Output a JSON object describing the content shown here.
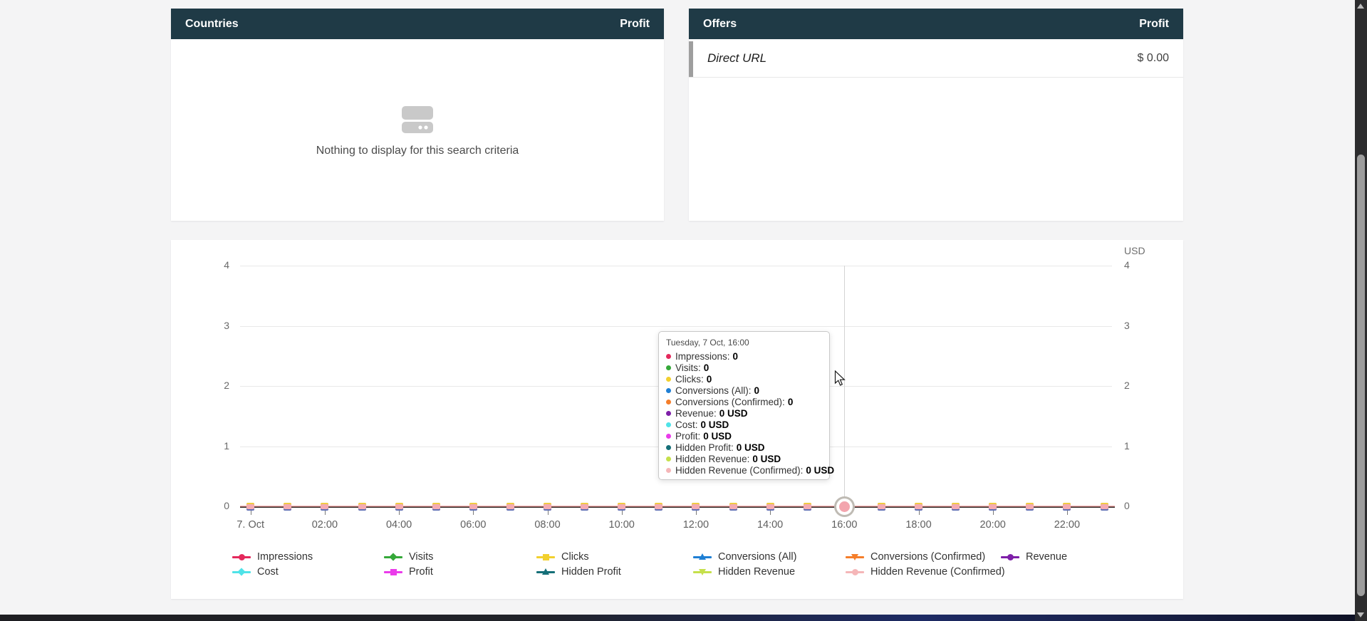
{
  "panels": {
    "countries": {
      "title": "Countries",
      "metric": "Profit",
      "empty_text": "Nothing to display for this search criteria"
    },
    "offers": {
      "title": "Offers",
      "metric": "Profit",
      "rows": [
        {
          "name": "Direct URL",
          "profit": "$ 0.00"
        }
      ]
    }
  },
  "chart": {
    "unit_label": "USD",
    "y_ticks": [
      "4",
      "3",
      "2",
      "1",
      "0"
    ],
    "x_ticks": [
      "7. Oct",
      "02:00",
      "04:00",
      "06:00",
      "08:00",
      "10:00",
      "12:00",
      "14:00",
      "16:00",
      "18:00",
      "20:00",
      "22:00"
    ],
    "highlight_hour": 16,
    "tooltip": {
      "title": "Tuesday, 7 Oct, 16:00",
      "items": [
        {
          "label": "Impressions",
          "value": "0",
          "color": "#e4295c"
        },
        {
          "label": "Visits",
          "value": "0",
          "color": "#35a839"
        },
        {
          "label": "Clicks",
          "value": "0",
          "color": "#f2d02e"
        },
        {
          "label": "Conversions (All)",
          "value": "0",
          "color": "#1f7fd4"
        },
        {
          "label": "Conversions (Confirmed)",
          "value": "0",
          "color": "#f57e2a"
        },
        {
          "label": "Revenue",
          "value": "0 USD",
          "color": "#7e1fa8"
        },
        {
          "label": "Cost",
          "value": "0 USD",
          "color": "#4fe3e8"
        },
        {
          "label": "Profit",
          "value": "0 USD",
          "color": "#ea3bea"
        },
        {
          "label": "Hidden Profit",
          "value": "0 USD",
          "color": "#156f78"
        },
        {
          "label": "Hidden Revenue",
          "value": "0 USD",
          "color": "#c5e04b"
        },
        {
          "label": "Hidden Revenue (Confirmed)",
          "value": "0 USD",
          "color": "#f5b6b8"
        }
      ]
    },
    "legend": [
      {
        "label": "Impressions",
        "color": "#e4295c",
        "shape": "circle"
      },
      {
        "label": "Visits",
        "color": "#35a839",
        "shape": "diamond"
      },
      {
        "label": "Clicks",
        "color": "#f2d02e",
        "shape": "square"
      },
      {
        "label": "Conversions (All)",
        "color": "#1f7fd4",
        "shape": "triangle-up"
      },
      {
        "label": "Conversions (Confirmed)",
        "color": "#f57e2a",
        "shape": "triangle-down"
      },
      {
        "label": "Revenue",
        "color": "#7e1fa8",
        "shape": "circle"
      },
      {
        "label": "Cost",
        "color": "#4fe3e8",
        "shape": "diamond"
      },
      {
        "label": "Profit",
        "color": "#ea3bea",
        "shape": "square"
      },
      {
        "label": "Hidden Profit",
        "color": "#156f78",
        "shape": "triangle-up"
      },
      {
        "label": "Hidden Revenue",
        "color": "#c5e04b",
        "shape": "triangle-down"
      },
      {
        "label": "Hidden Revenue (Confirmed)",
        "color": "#f5b6b8",
        "shape": "circle"
      }
    ],
    "chart_data": {
      "type": "line",
      "date": "Tuesday, 7 Oct",
      "x": [
        "00:00",
        "01:00",
        "02:00",
        "03:00",
        "04:00",
        "05:00",
        "06:00",
        "07:00",
        "08:00",
        "09:00",
        "10:00",
        "11:00",
        "12:00",
        "13:00",
        "14:00",
        "15:00",
        "16:00",
        "17:00",
        "18:00",
        "19:00",
        "20:00",
        "21:00",
        "22:00",
        "23:00"
      ],
      "series": [
        {
          "name": "Impressions",
          "values": [
            0,
            0,
            0,
            0,
            0,
            0,
            0,
            0,
            0,
            0,
            0,
            0,
            0,
            0,
            0,
            0,
            0,
            0,
            0,
            0,
            0,
            0,
            0,
            0
          ]
        },
        {
          "name": "Visits",
          "values": [
            0,
            0,
            0,
            0,
            0,
            0,
            0,
            0,
            0,
            0,
            0,
            0,
            0,
            0,
            0,
            0,
            0,
            0,
            0,
            0,
            0,
            0,
            0,
            0
          ]
        },
        {
          "name": "Clicks",
          "values": [
            0,
            0,
            0,
            0,
            0,
            0,
            0,
            0,
            0,
            0,
            0,
            0,
            0,
            0,
            0,
            0,
            0,
            0,
            0,
            0,
            0,
            0,
            0,
            0
          ]
        },
        {
          "name": "Conversions (All)",
          "values": [
            0,
            0,
            0,
            0,
            0,
            0,
            0,
            0,
            0,
            0,
            0,
            0,
            0,
            0,
            0,
            0,
            0,
            0,
            0,
            0,
            0,
            0,
            0,
            0
          ]
        },
        {
          "name": "Conversions (Confirmed)",
          "values": [
            0,
            0,
            0,
            0,
            0,
            0,
            0,
            0,
            0,
            0,
            0,
            0,
            0,
            0,
            0,
            0,
            0,
            0,
            0,
            0,
            0,
            0,
            0,
            0
          ]
        },
        {
          "name": "Revenue",
          "values": [
            0,
            0,
            0,
            0,
            0,
            0,
            0,
            0,
            0,
            0,
            0,
            0,
            0,
            0,
            0,
            0,
            0,
            0,
            0,
            0,
            0,
            0,
            0,
            0
          ]
        },
        {
          "name": "Cost",
          "values": [
            0,
            0,
            0,
            0,
            0,
            0,
            0,
            0,
            0,
            0,
            0,
            0,
            0,
            0,
            0,
            0,
            0,
            0,
            0,
            0,
            0,
            0,
            0,
            0
          ]
        },
        {
          "name": "Profit",
          "values": [
            0,
            0,
            0,
            0,
            0,
            0,
            0,
            0,
            0,
            0,
            0,
            0,
            0,
            0,
            0,
            0,
            0,
            0,
            0,
            0,
            0,
            0,
            0,
            0
          ]
        },
        {
          "name": "Hidden Profit",
          "values": [
            0,
            0,
            0,
            0,
            0,
            0,
            0,
            0,
            0,
            0,
            0,
            0,
            0,
            0,
            0,
            0,
            0,
            0,
            0,
            0,
            0,
            0,
            0,
            0
          ]
        },
        {
          "name": "Hidden Revenue",
          "values": [
            0,
            0,
            0,
            0,
            0,
            0,
            0,
            0,
            0,
            0,
            0,
            0,
            0,
            0,
            0,
            0,
            0,
            0,
            0,
            0,
            0,
            0,
            0,
            0
          ]
        },
        {
          "name": "Hidden Revenue (Confirmed)",
          "values": [
            0,
            0,
            0,
            0,
            0,
            0,
            0,
            0,
            0,
            0,
            0,
            0,
            0,
            0,
            0,
            0,
            0,
            0,
            0,
            0,
            0,
            0,
            0,
            0
          ]
        }
      ],
      "ylim": [
        0,
        4
      ],
      "y_unit_right": "USD",
      "grid": true,
      "legend_position": "bottom"
    }
  }
}
